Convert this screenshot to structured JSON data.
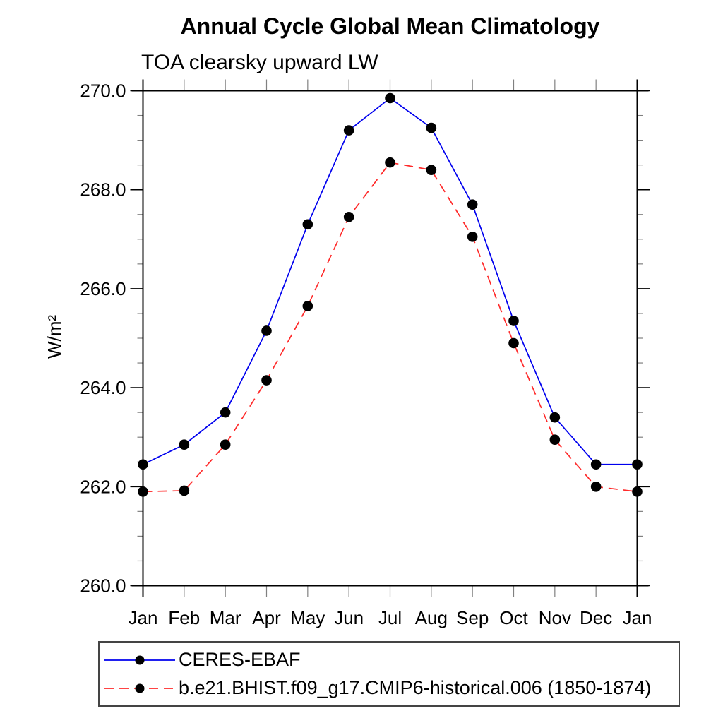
{
  "chart_data": {
    "type": "line",
    "title": "Annual Cycle Global Mean Climatology",
    "subtitle": "TOA clearsky upward LW",
    "ylabel": "W/m²",
    "xlabel": "",
    "categories": [
      "Jan",
      "Feb",
      "Mar",
      "Apr",
      "May",
      "Jun",
      "Jul",
      "Aug",
      "Sep",
      "Oct",
      "Nov",
      "Dec",
      "Jan"
    ],
    "ylim": [
      260.0,
      270.0
    ],
    "ytick_labels": [
      "260.0",
      "262.0",
      "264.0",
      "266.0",
      "268.0",
      "270.0"
    ],
    "ytick_major": [
      260.0,
      262.0,
      264.0,
      266.0,
      268.0,
      270.0
    ],
    "ytick_minor_step": 0.5,
    "grid": false,
    "legend_position": "bottom-left-box",
    "axis_color": "#000000",
    "minor_tick_color": "#808080",
    "marker": "filled-circle",
    "marker_color": "#000000",
    "series": [
      {
        "name": "CERES-EBAF",
        "color": "#0000ee",
        "line_style": "solid",
        "values": [
          262.45,
          262.85,
          263.5,
          265.15,
          267.3,
          269.2,
          269.85,
          269.25,
          267.7,
          265.35,
          263.4,
          262.45,
          262.45
        ]
      },
      {
        "name": "b.e21.BHIST.f09_g17.CMIP6-historical.006 (1850-1874)",
        "color": "#ff2a2a",
        "line_style": "dashed",
        "values": [
          261.9,
          261.92,
          262.85,
          264.15,
          265.65,
          267.45,
          268.55,
          268.4,
          267.05,
          264.9,
          262.95,
          262.0,
          261.9
        ]
      }
    ]
  }
}
